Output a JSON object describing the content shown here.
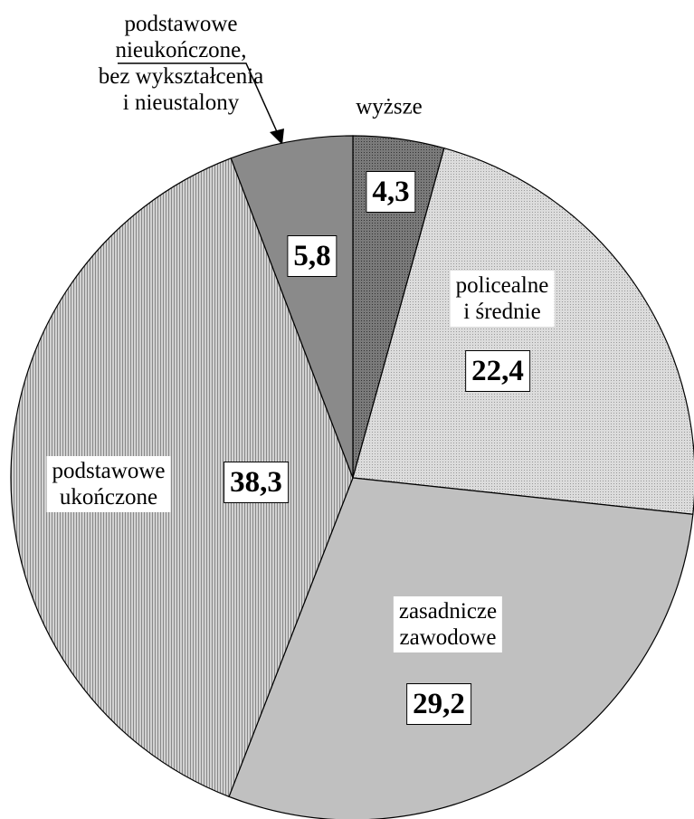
{
  "chart_data": {
    "type": "pie",
    "categories": [
      "wyższe",
      "policealne\ni średnie",
      "zasadnicze\nzawodowe",
      "podstawowe\nukończone",
      "podstawowe\nnieukończone,\nbez wykształcenia\ni nieustalony"
    ],
    "values": [
      4.3,
      22.4,
      29.2,
      38.3,
      5.8
    ],
    "value_labels": [
      "4,3",
      "22,4",
      "29,2",
      "38,3",
      "5,8"
    ],
    "colors": [
      "#7a7a7a",
      "#dcdcdc",
      "#c0c0c0",
      "#d2d2d2",
      "#8a8a8a"
    ]
  }
}
